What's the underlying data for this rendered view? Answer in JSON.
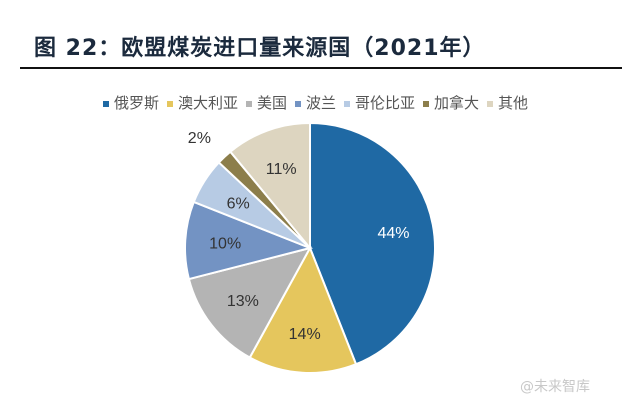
{
  "chart_data": {
    "type": "pie",
    "title": "图 22：欧盟煤炭进口量来源国（2021年）",
    "legend_position": "top",
    "start": "12 o'clock, clockwise",
    "slices": [
      {
        "name": "俄罗斯",
        "value": 44,
        "label": "44%",
        "color": "#1f69a4"
      },
      {
        "name": "澳大利亚",
        "value": 14,
        "label": "14%",
        "color": "#e5c65d"
      },
      {
        "name": "美国",
        "value": 13,
        "label": "13%",
        "color": "#b4b4b4"
      },
      {
        "name": "波兰",
        "value": 10,
        "label": "10%",
        "color": "#7393c3"
      },
      {
        "name": "哥伦比亚",
        "value": 6,
        "label": "6%",
        "color": "#b7cbe4"
      },
      {
        "name": "加拿大",
        "value": 2,
        "label": "2%",
        "color": "#8c7e4b"
      },
      {
        "name": "其他",
        "value": 11,
        "label": "11%",
        "color": "#ddd5c0"
      }
    ]
  },
  "watermark": "@未来智库"
}
